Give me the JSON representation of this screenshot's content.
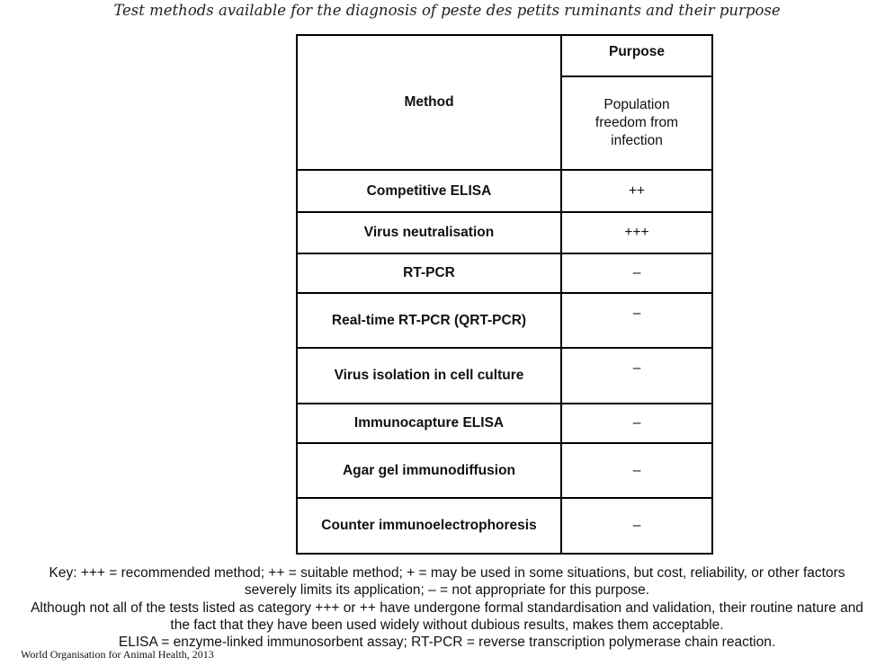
{
  "title": "Test methods available for the diagnosis of peste des petits ruminants and their purpose",
  "table": {
    "method_header": "Method",
    "purpose_header": "Purpose",
    "purpose_column": "Population freedom from infection",
    "rows": [
      {
        "method": "Competitive ELISA",
        "value": "++"
      },
      {
        "method": "Virus neutralisation",
        "value": "+++"
      },
      {
        "method": "RT-PCR",
        "value": "–"
      },
      {
        "method": "Real-time RT-PCR (QRT-PCR)",
        "value": "–"
      },
      {
        "method": "Virus isolation in cell culture",
        "value": "–"
      },
      {
        "method": "Immunocapture ELISA",
        "value": "–"
      },
      {
        "method": "Agar gel immunodiffusion",
        "value": "–"
      },
      {
        "method": "Counter immunoelectrophoresis",
        "value": "–"
      }
    ]
  },
  "notes": {
    "key": "Key: +++ = recommended method; ++ = suitable method; + = may be used in some situations, but cost, reliability, or other factors severely limits its application; – = not appropriate for this purpose.",
    "validation": "Although not all of the tests listed as category +++ or ++ have undergone formal standardisation and validation, their routine nature and the fact that they have been used widely without dubious results, makes them acceptable.",
    "abbreviations": "ELISA = enzyme-linked immunosorbent assay; RT-PCR = reverse transcription polymerase chain reaction."
  },
  "footer": "World Organisation for Animal Health, 2013"
}
